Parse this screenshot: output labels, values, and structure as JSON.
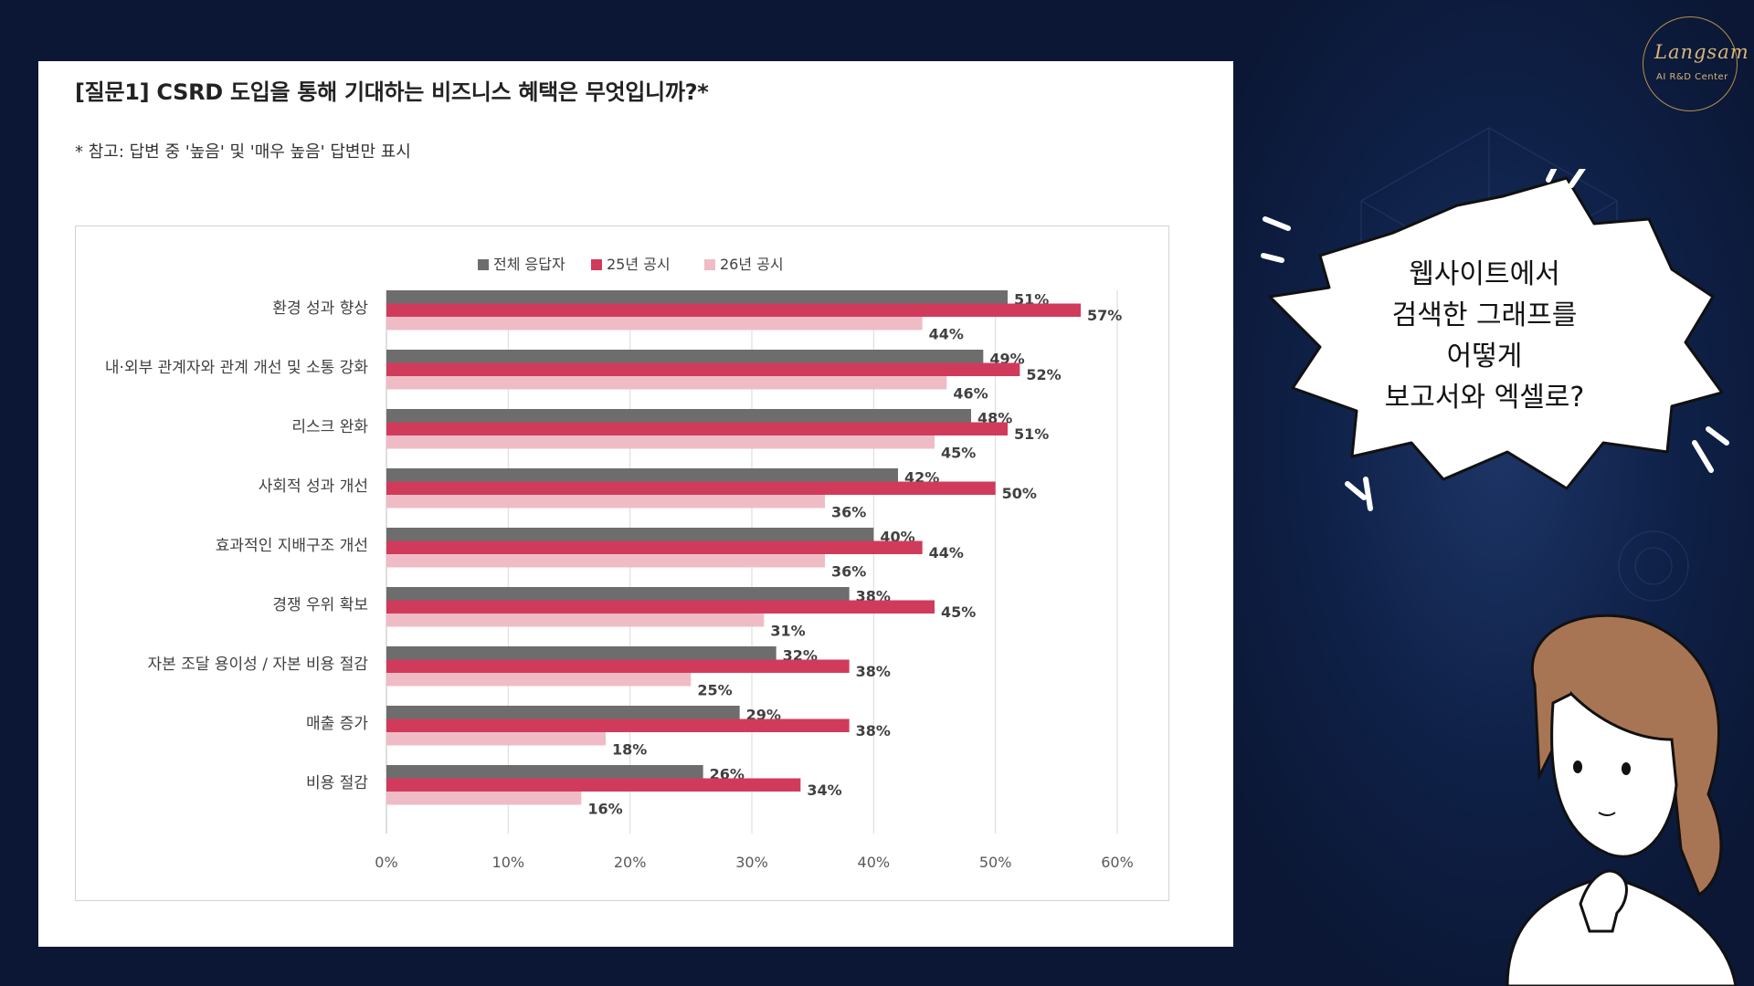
{
  "panel": {
    "title": "[질문1] CSRD 도입을 통해 기대하는 비즈니스 혜택은 무엇입니까?*",
    "note": "* 참고: 답변 중 '높음' 및 '매우 높음' 답변만 표시"
  },
  "logo": {
    "script": "Langsam",
    "subtitle": "AI R&D Center",
    "color": "#d8b67a"
  },
  "bubble": {
    "lines": [
      "웹사이트에서",
      "검색한 그래프를",
      "어떻게",
      "보고서와 엑셀로?"
    ]
  },
  "chart_data": {
    "type": "bar",
    "orientation": "horizontal",
    "categories": [
      "환경 성과 향상",
      "내·외부 관계자와 관계 개선 및 소통 강화",
      "리스크 완화",
      "사회적 성과 개선",
      "효과적인 지배구조 개선",
      "경쟁 우위 확보",
      "자본 조달 용이성 / 자본 비용 절감",
      "매출 증가",
      "비용 절감"
    ],
    "series": [
      {
        "name": "전체 응답자",
        "color": "#6d6d6d",
        "values": [
          51,
          49,
          48,
          42,
          40,
          38,
          32,
          29,
          26
        ]
      },
      {
        "name": "25년 공시",
        "color": "#d13b5b",
        "values": [
          57,
          52,
          51,
          50,
          44,
          45,
          38,
          38,
          34
        ]
      },
      {
        "name": "26년 공시",
        "color": "#efbcc6",
        "values": [
          44,
          46,
          45,
          36,
          36,
          31,
          25,
          18,
          16
        ]
      }
    ],
    "value_suffix": "%",
    "xlim": [
      0,
      60
    ],
    "xticks": [
      "0%",
      "10%",
      "20%",
      "30%",
      "40%",
      "50%",
      "60%"
    ],
    "legend_position": "top-center",
    "grid": true
  }
}
